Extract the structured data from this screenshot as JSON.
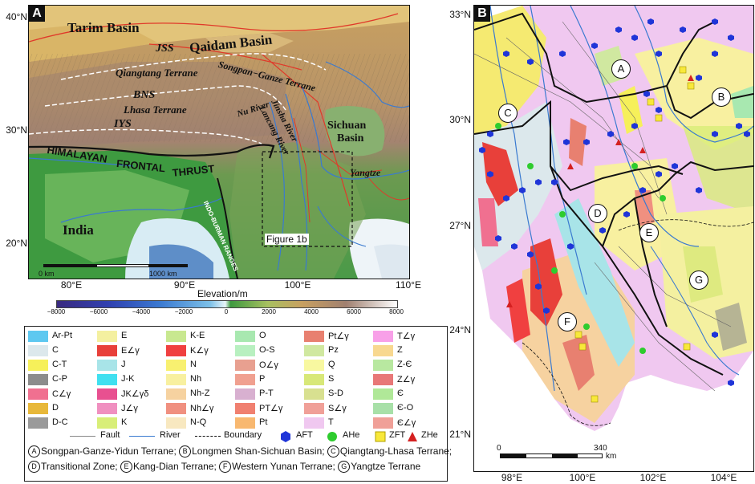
{
  "panelA": {
    "letter": "A",
    "lat_labels": [
      "40°N",
      "30°N",
      "20°N"
    ],
    "lon_labels": [
      "80°E",
      "90°E",
      "100°E",
      "110°E"
    ],
    "labels": {
      "tarim": "Tarim Basin",
      "qaidam": "Qaidam Basin",
      "jss": "JSS",
      "songpan": "Songpan−Ganze Terrane",
      "qiangtang": "Qiangtang Terrane",
      "bns": "BNS",
      "lhasa": "Lhasa Terrane",
      "iys": "IYS",
      "jinsha": "Jinsha River",
      "lancang": "Lancang River",
      "nu": "Nu River",
      "sichuan1": "Sichuan",
      "sichuan2": "Basin",
      "yangtze": "Yangtze",
      "himalayan": "HIMALAYAN",
      "frontal": "FRONTAL",
      "thrust": "THRUST",
      "india": "India",
      "indo": "INDO-BURMAN RANGES",
      "figure1b": "Figure 1b"
    },
    "scale": {
      "left": "0 km",
      "right": "1000 km"
    },
    "colorbar": {
      "title": "Elevation/m",
      "ticks": [
        "−8000",
        "−6000",
        "−4000",
        "−2000",
        "0",
        "2000",
        "4000",
        "6000",
        "8000"
      ]
    }
  },
  "panelB": {
    "letter": "B",
    "lat_labels": [
      "33°N",
      "30°N",
      "27°N",
      "24°N",
      "21°N"
    ],
    "lon_labels": [
      "98°E",
      "100°E",
      "102°E",
      "104°E"
    ],
    "terranes": [
      "A",
      "B",
      "C",
      "D",
      "E",
      "F",
      "G"
    ],
    "scale": {
      "left": "0",
      "right": "340",
      "unit": "km"
    }
  },
  "legend": {
    "units": [
      {
        "name": "Ar-Pt",
        "color": "#5ec8f0"
      },
      {
        "name": "C",
        "color": "#dce8ec"
      },
      {
        "name": "C-T",
        "color": "#f6f05a"
      },
      {
        "name": "C-P",
        "color": "#8c8c8c"
      },
      {
        "name": "C∠γ",
        "color": "#f07090"
      },
      {
        "name": "D",
        "color": "#e8b83a"
      },
      {
        "name": "D-C",
        "color": "#9a9a9a"
      },
      {
        "name": "E",
        "color": "#f4f0a0"
      },
      {
        "name": "E∠γ",
        "color": "#e8403a"
      },
      {
        "name": "J",
        "color": "#a8e4e8"
      },
      {
        "name": "J-K",
        "color": "#40e0f0"
      },
      {
        "name": "JK∠γδ",
        "color": "#e85090"
      },
      {
        "name": "J∠γ",
        "color": "#f090c0"
      },
      {
        "name": "K",
        "color": "#d8ee78"
      },
      {
        "name": "K-E",
        "color": "#c8e890"
      },
      {
        "name": "K∠γ",
        "color": "#f04040"
      },
      {
        "name": "N",
        "color": "#f8f070"
      },
      {
        "name": "Nh",
        "color": "#f8f0a0"
      },
      {
        "name": "Nh-Z",
        "color": "#f6d2a0"
      },
      {
        "name": "Nh∠γ",
        "color": "#f09080"
      },
      {
        "name": "N-Q",
        "color": "#f8e8c0"
      },
      {
        "name": "O",
        "color": "#a8e8b0"
      },
      {
        "name": "O-S",
        "color": "#b8f0c0"
      },
      {
        "name": "O∠γ",
        "color": "#e8a090"
      },
      {
        "name": "P",
        "color": "#f0a090"
      },
      {
        "name": "P-T",
        "color": "#d8b0d0"
      },
      {
        "name": "PT∠γ",
        "color": "#f08070"
      },
      {
        "name": "Pt",
        "color": "#f8b870"
      },
      {
        "name": "Pt∠γ",
        "color": "#e88070"
      },
      {
        "name": "Pz",
        "color": "#d0e8a0"
      },
      {
        "name": "Q",
        "color": "#f8f8a0"
      },
      {
        "name": "S",
        "color": "#d8e878"
      },
      {
        "name": "S-D",
        "color": "#d8e090"
      },
      {
        "name": "S∠γ",
        "color": "#f0a098"
      },
      {
        "name": "T",
        "color": "#f0c8f0"
      },
      {
        "name": "T∠γ",
        "color": "#f8a0e8"
      },
      {
        "name": "Z",
        "color": "#f8d890"
      },
      {
        "name": "Z-Є",
        "color": "#b8e8a0"
      },
      {
        "name": "Z∠γ",
        "color": "#e87878"
      },
      {
        "name": "Є",
        "color": "#b0e898"
      },
      {
        "name": "Є-O",
        "color": "#a8e0a8"
      },
      {
        "name": "Є∠γ",
        "color": "#f0a098"
      }
    ],
    "lines": {
      "fault": "Fault",
      "river": "River",
      "boundary": "Boundary"
    },
    "samples": {
      "aft": "AFT",
      "ahe": "AHe",
      "zft": "ZFT",
      "zhe": "ZHe"
    },
    "terranes": [
      {
        "key": "A",
        "name": "Songpan-Ganze-Yidun Terrane;"
      },
      {
        "key": "B",
        "name": "Longmen Shan-Sichuan Basin;"
      },
      {
        "key": "C",
        "name": "Qiangtang-Lhasa Terrane;"
      },
      {
        "key": "D",
        "name": "Transitional Zone;"
      },
      {
        "key": "E",
        "name": "Kang-Dian Terrane;"
      },
      {
        "key": "F",
        "name": "Western Yunan Terrane;"
      },
      {
        "key": "G",
        "name": "Yangtze Terrane"
      }
    ]
  }
}
